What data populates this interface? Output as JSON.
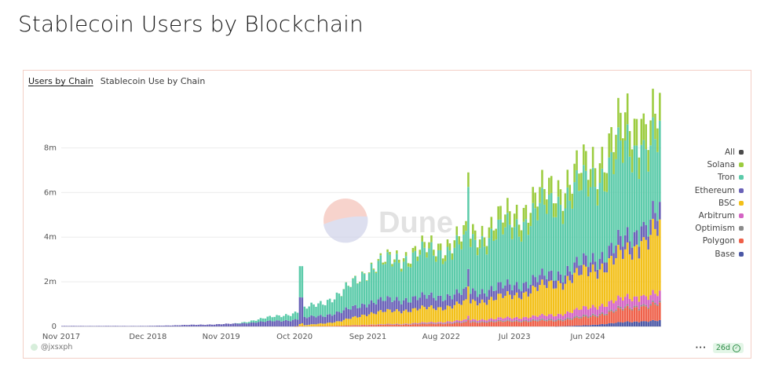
{
  "page": {
    "title": "Stablecoin Users by Blockchain"
  },
  "tabs": [
    {
      "label": "Users by Chain",
      "active": true
    },
    {
      "label": "Stablecoin Use by Chain",
      "active": false
    }
  ],
  "watermark": {
    "text": "Dune"
  },
  "footer": {
    "author": "@jxsxph",
    "more": "···",
    "age": "26d",
    "age_icon": "check-icon"
  },
  "chart_data": {
    "type": "bar",
    "stacked": true,
    "x_range": [
      "2017-11",
      "2025-05"
    ],
    "x_ticks": [
      "Nov 2017",
      "Dec 2018",
      "Nov 2019",
      "Oct 2020",
      "Sep 2021",
      "Aug 2022",
      "Jul 2023",
      "Jun 2024"
    ],
    "y_ticks": [
      "0",
      "2m",
      "4m",
      "6m",
      "8m"
    ],
    "ylim": [
      0,
      9000000
    ],
    "grid": true,
    "legend_position": "right",
    "legend": [
      {
        "name": "All",
        "color": "#4b4b4b"
      },
      {
        "name": "Solana",
        "color": "#9ccc3f"
      },
      {
        "name": "Tron",
        "color": "#5ccbaa"
      },
      {
        "name": "Ethereum",
        "color": "#6a62b8"
      },
      {
        "name": "BSC",
        "color": "#f3c019"
      },
      {
        "name": "Arbitrum",
        "color": "#d464c4"
      },
      {
        "name": "Optimism",
        "color": "#8c8c8c"
      },
      {
        "name": "Polygon",
        "color": "#ef6049"
      },
      {
        "name": "Base",
        "color": "#4b58a6"
      }
    ],
    "stack_order": [
      "Base",
      "Polygon",
      "Optimism",
      "Arbitrum",
      "BSC",
      "Ethereum",
      "Tron",
      "Solana"
    ],
    "series_anchors": {
      "x": [
        "2017-11",
        "2018-12",
        "2019-11",
        "2020-01",
        "2020-10",
        "2021-05",
        "2021-09",
        "2022-02",
        "2022-08",
        "2023-01",
        "2023-07",
        "2024-01",
        "2024-06",
        "2024-12",
        "2025-04"
      ],
      "Base": [
        0,
        0,
        0,
        0,
        0,
        0,
        0,
        0,
        0,
        0,
        0,
        0,
        50000,
        200000,
        250000
      ],
      "Polygon": [
        0,
        0,
        0,
        0,
        0,
        30000,
        60000,
        80000,
        120000,
        180000,
        220000,
        250000,
        350000,
        600000,
        700000
      ],
      "Optimism": [
        0,
        0,
        0,
        0,
        0,
        0,
        10000,
        20000,
        30000,
        40000,
        50000,
        60000,
        70000,
        70000,
        70000
      ],
      "Arbitrum": [
        0,
        0,
        0,
        0,
        0,
        0,
        10000,
        20000,
        50000,
        80000,
        120000,
        200000,
        350000,
        400000,
        400000
      ],
      "BSC": [
        0,
        0,
        0,
        0,
        0,
        200000,
        500000,
        600000,
        650000,
        800000,
        1000000,
        1400000,
        1600000,
        2000000,
        2800000
      ],
      "Ethereum": [
        20000,
        20000,
        100000,
        120000,
        300000,
        400000,
        500000,
        500000,
        500000,
        450000,
        450000,
        400000,
        450000,
        600000,
        700000
      ],
      "Tron": [
        0,
        0,
        0,
        0,
        300000,
        800000,
        1500000,
        1800000,
        2000000,
        2200000,
        2600000,
        3200000,
        3400000,
        4000000,
        3200000
      ],
      "Solana": [
        0,
        0,
        0,
        0,
        0,
        0,
        30000,
        150000,
        300000,
        400000,
        600000,
        700000,
        800000,
        1200000,
        1100000
      ]
    },
    "spikes": [
      {
        "x": "2020-11",
        "total": 2700000
      },
      {
        "x": "2022-12",
        "total": 6900000
      },
      {
        "x": "2025-02",
        "total": 9300000
      }
    ]
  }
}
